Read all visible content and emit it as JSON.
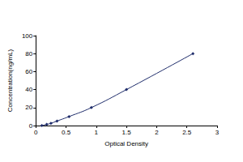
{
  "chart_data": {
    "type": "line",
    "x_label": "Optical Density",
    "y_label": "Concentration(ng/mL)",
    "x": [
      0.1,
      0.18,
      0.25,
      0.35,
      0.55,
      0.92,
      1.5,
      2.6
    ],
    "values": [
      0,
      1.25,
      2.5,
      5,
      10,
      20,
      40,
      80
    ],
    "color": "#1f2d6b",
    "marker": "diamond",
    "line_style": "solid",
    "xlim": [
      0,
      3
    ],
    "xticks": [
      0,
      0.5,
      1,
      1.5,
      2,
      2.5,
      3
    ],
    "ylim": [
      0,
      100
    ],
    "yticks": [
      0,
      20,
      40,
      60,
      80,
      100
    ],
    "grid": false
  }
}
